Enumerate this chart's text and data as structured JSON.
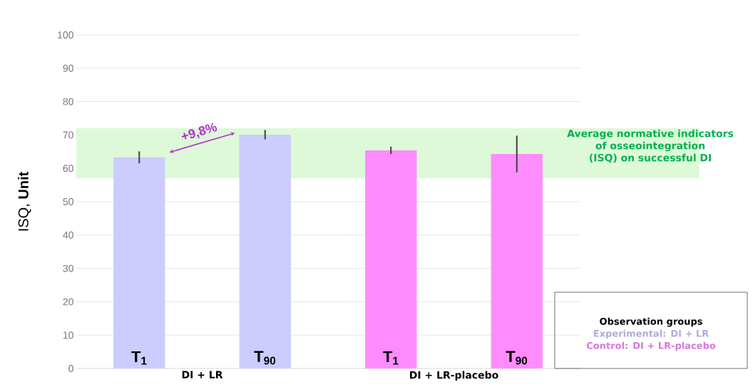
{
  "chart_data": {
    "type": "bar",
    "ylabel": "ISQ, **Unit**",
    "categories": [
      "T$_{1}$",
      "T$_{90}$",
      "T$_{1}$",
      "T$_{90}$"
    ],
    "series": [
      {
        "name": "Experimental: DI + LR",
        "color": "#ccccff",
        "values": [
          63.3,
          70.1,
          null,
          null
        ],
        "errors": [
          1.8,
          1.4,
          null,
          null
        ]
      },
      {
        "name": "Control: DI + LR-placebo",
        "color": "#ff8cff",
        "values": [
          null,
          null,
          65.4,
          64.3
        ],
        "errors": [
          null,
          null,
          1.1,
          5.5
        ]
      }
    ],
    "legend_title": "Observation groups",
    "legend": "bottom right",
    "ylim": [
      0,
      100
    ],
    "yticks": [
      0,
      10,
      20,
      30,
      40,
      50,
      60,
      70,
      80,
      90,
      100
    ],
    "grid": "y",
    "bands": [
      {
        "axis": "y",
        "from": 57,
        "to": 72,
        "label": "Average normative indicators of osseointegration (ISQ) on successful DI",
        "color": "#ddf9d8"
      }
    ],
    "annotations": [
      "+9,8%",
      "DI + LR",
      "DI + LR-placebo"
    ]
  }
}
